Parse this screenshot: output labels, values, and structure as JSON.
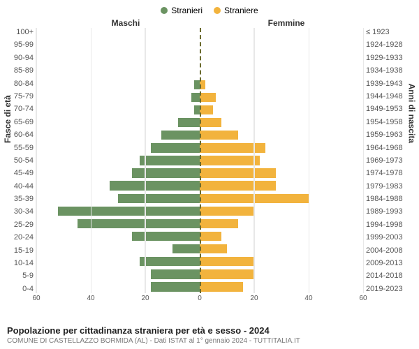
{
  "legend": {
    "male": {
      "label": "Stranieri",
      "color": "#6b9362"
    },
    "female": {
      "label": "Straniere",
      "color": "#f2b33d"
    }
  },
  "headers": {
    "male": "Maschi",
    "female": "Femmine"
  },
  "axis_labels": {
    "left": "Fasce di età",
    "right": "Anni di nascita"
  },
  "age_groups": [
    "100+",
    "95-99",
    "90-94",
    "85-89",
    "80-84",
    "75-79",
    "70-74",
    "65-69",
    "60-64",
    "55-59",
    "50-54",
    "45-49",
    "40-44",
    "35-39",
    "30-34",
    "25-29",
    "20-24",
    "15-19",
    "10-14",
    "5-9",
    "0-4"
  ],
  "birth_years": [
    "≤ 1923",
    "1924-1928",
    "1929-1933",
    "1934-1938",
    "1939-1943",
    "1944-1948",
    "1949-1953",
    "1954-1958",
    "1959-1963",
    "1964-1968",
    "1969-1973",
    "1974-1978",
    "1979-1983",
    "1984-1988",
    "1989-1993",
    "1994-1998",
    "1999-2003",
    "2004-2008",
    "2009-2013",
    "2014-2018",
    "2019-2023"
  ],
  "male_values": [
    0,
    0,
    0,
    0,
    2,
    3,
    2,
    8,
    14,
    18,
    22,
    25,
    33,
    30,
    52,
    45,
    25,
    10,
    22,
    18,
    18
  ],
  "female_values": [
    0,
    0,
    0,
    0,
    2,
    6,
    5,
    8,
    14,
    24,
    22,
    28,
    28,
    40,
    20,
    14,
    8,
    10,
    20,
    20,
    16
  ],
  "xmax": 60,
  "x_ticks": [
    0,
    20,
    40,
    60
  ],
  "colors": {
    "male_bar": "#6b9362",
    "female_bar": "#f2b33d",
    "center_line": "#6b6b2e",
    "grid_line": "#e8e8e8",
    "background": "#ffffff"
  },
  "layout": {
    "bar_height_pct": 74
  },
  "title": "Popolazione per cittadinanza straniera per età e sesso - 2024",
  "subtitle": "COMUNE DI CASTELLAZZO BORMIDA (AL) - Dati ISTAT al 1° gennaio 2024 - TUTTITALIA.IT"
}
